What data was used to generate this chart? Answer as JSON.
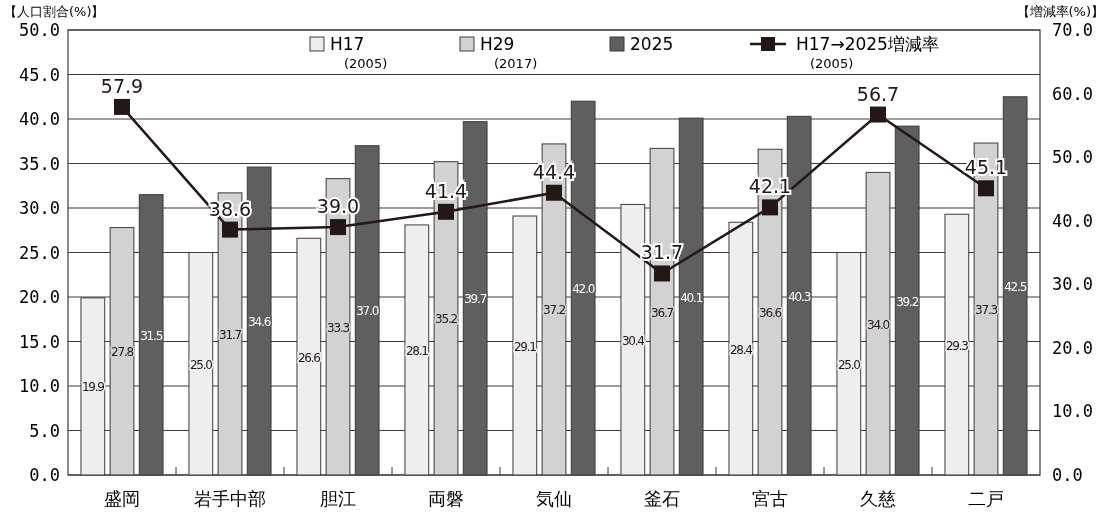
{
  "chart_data": {
    "type": "bar",
    "ylabel": "【人口割合(%)】",
    "y2label": "【増減率(%)】",
    "categories": [
      "盛岡",
      "岩手中部",
      "胆江",
      "両磐",
      "気仙",
      "釜石",
      "宮古",
      "久慈",
      "二戸"
    ],
    "series": [
      {
        "name": "H17\n(2005)",
        "color": "#eeeeee",
        "values": [
          19.9,
          25.0,
          26.6,
          28.1,
          29.1,
          30.4,
          28.4,
          25.0,
          29.3
        ],
        "value_labels": [
          "19.9",
          "25.0",
          "26.6",
          "28.1",
          "29.1",
          "30.4",
          "28.4",
          "25.0",
          "29.3"
        ]
      },
      {
        "name": "H29\n(2017)",
        "color": "#d2d2d2",
        "values": [
          27.8,
          31.7,
          33.3,
          35.2,
          37.2,
          36.7,
          36.6,
          34.0,
          37.3
        ],
        "value_labels": [
          "27.8",
          "31.7",
          "33.3",
          "35.2",
          "37.2",
          "36.7",
          "36.6",
          "34.0",
          "37.3"
        ]
      },
      {
        "name": "2025",
        "color": "#5f5f5f",
        "values": [
          31.5,
          34.6,
          37.0,
          39.7,
          42.0,
          40.1,
          40.3,
          39.2,
          42.5
        ],
        "value_labels": [
          "31.5",
          "34.6",
          "37.0",
          "39.7",
          "42.0",
          "40.1",
          "40.3",
          "39.2",
          "42.5"
        ]
      },
      {
        "name": "H17→2025増減率\n(2005)",
        "type": "line",
        "axis": "y2",
        "color": "#231815",
        "marker": "square",
        "values": [
          57.9,
          38.6,
          39.0,
          41.4,
          44.4,
          31.7,
          42.1,
          56.7,
          45.1
        ],
        "value_labels": [
          "57.9",
          "38.6",
          "39.0",
          "41.4",
          "44.4",
          "31.7",
          "42.1",
          "56.7",
          "45.1"
        ]
      }
    ],
    "ylim": [
      0,
      50
    ],
    "yticks": [
      {
        "value": 0,
        "label": "0.0"
      },
      {
        "value": 5,
        "label": "5.0"
      },
      {
        "value": 10,
        "label": "10.0"
      },
      {
        "value": 15,
        "label": "15.0"
      },
      {
        "value": 20,
        "label": "20.0"
      },
      {
        "value": 25,
        "label": "25.0"
      },
      {
        "value": 30,
        "label": "30.0"
      },
      {
        "value": 35,
        "label": "35.0"
      },
      {
        "value": 40,
        "label": "40.0"
      },
      {
        "value": 45,
        "label": "45.0"
      },
      {
        "value": 50,
        "label": "50.0"
      }
    ],
    "y2lim": [
      0,
      70
    ],
    "y2ticks": [
      {
        "value": 0,
        "label": "0.0"
      },
      {
        "value": 10,
        "label": "10.0"
      },
      {
        "value": 20,
        "label": "20.0"
      },
      {
        "value": 30,
        "label": "30.0"
      },
      {
        "value": 40,
        "label": "40.0"
      },
      {
        "value": 50,
        "label": "50.0"
      },
      {
        "value": 60,
        "label": "60.0"
      },
      {
        "value": 70,
        "label": "70.0"
      }
    ],
    "grid": "y",
    "legend": "top"
  }
}
